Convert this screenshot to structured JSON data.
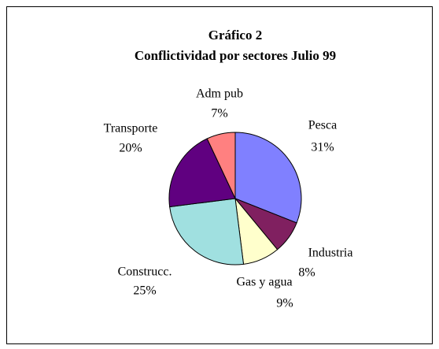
{
  "chart_data": {
    "type": "pie",
    "title": "Gráfico 2",
    "subtitle": "Conflictividad por sectores Julio 99",
    "categories": [
      "Pesca",
      "Industria",
      "Gas y agua",
      "Construcc.",
      "Transporte",
      "Adm pub"
    ],
    "values": [
      31,
      8,
      9,
      25,
      20,
      7
    ],
    "value_labels": [
      "31%",
      "8%",
      "9%",
      "25%",
      "20%",
      "7%"
    ],
    "colors": [
      "#8080ff",
      "#802060",
      "#ffffcc",
      "#a0e0e0",
      "#600080",
      "#ff8080"
    ]
  }
}
